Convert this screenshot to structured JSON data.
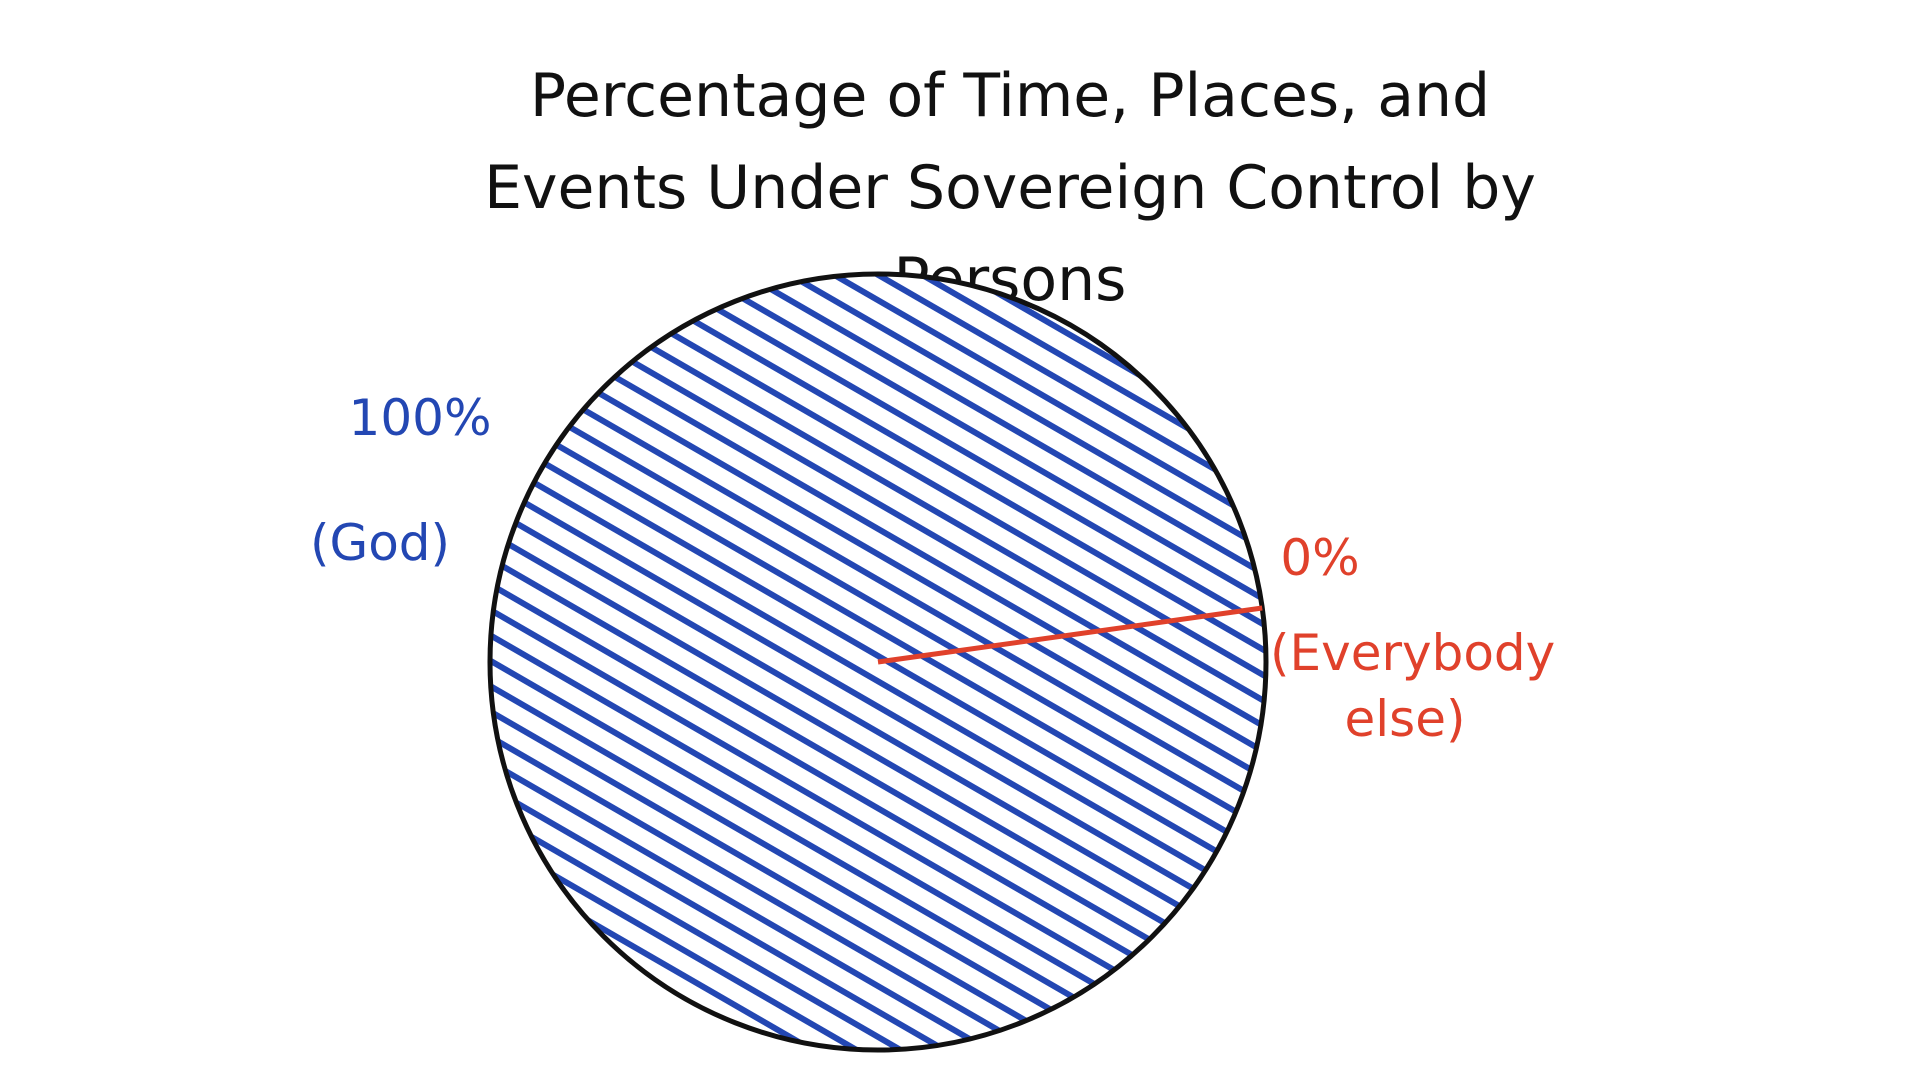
{
  "chart_data": {
    "type": "pie",
    "title": "Percentage of Time, Places, and Events Under Sovereign Control by Persons",
    "categories": [
      "(God)",
      "(Everybody else)"
    ],
    "values": [
      100,
      0
    ],
    "value_labels": [
      "100%",
      "0%"
    ],
    "colors": [
      "#2347b3",
      "#e0412b"
    ]
  }
}
